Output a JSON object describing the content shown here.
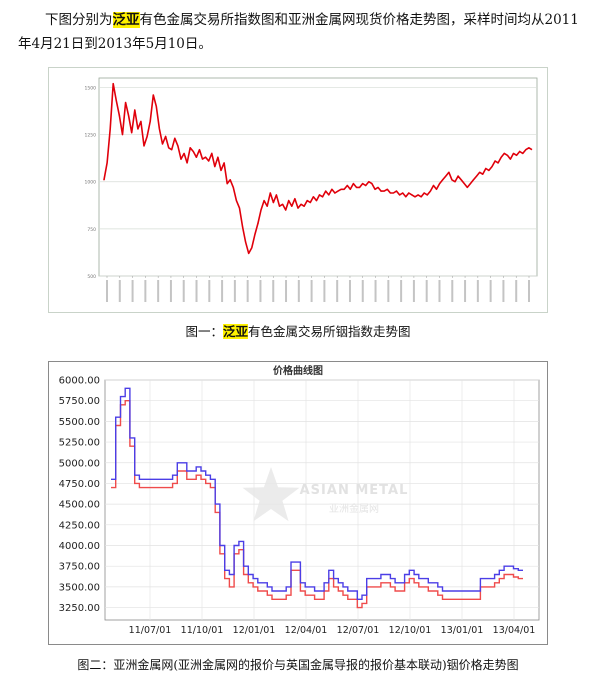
{
  "intro": {
    "before": "下图分别为",
    "highlight": "泛亚",
    "after": "有色金属交易所指数图和亚洲金属网现货价格走势图，采样时间均从2011年4月21日到2013年5月10日。"
  },
  "figure1": {
    "caption_prefix": "图一：",
    "caption_highlight": "泛亚",
    "caption_suffix": "有色金属交易所铟指数走势图"
  },
  "figure2": {
    "caption": "图二：亚洲金属网(亚洲金属网的报价与英国金属导报的报价基本联动)铟价格走势图"
  },
  "chart_data": [
    {
      "type": "line",
      "title": "",
      "ylim": [
        500,
        1550
      ],
      "y_ticks": [
        500,
        750,
        1000,
        1250,
        1500
      ],
      "colors": [
        "#e0000b"
      ],
      "grid": true,
      "x_range": [
        "2011-04-21",
        "2013-05-10"
      ],
      "series": [
        {
          "values": [
            1010,
            1100,
            1280,
            1520,
            1430,
            1350,
            1250,
            1420,
            1350,
            1260,
            1380,
            1280,
            1320,
            1190,
            1240,
            1320,
            1460,
            1400,
            1280,
            1200,
            1240,
            1180,
            1170,
            1230,
            1190,
            1120,
            1150,
            1100,
            1180,
            1160,
            1130,
            1170,
            1120,
            1130,
            1110,
            1150,
            1080,
            1130,
            1060,
            1100,
            990,
            1010,
            970,
            900,
            860,
            760,
            680,
            620,
            650,
            720,
            780,
            850,
            900,
            870,
            940,
            890,
            930,
            870,
            880,
            850,
            900,
            870,
            910,
            860,
            880,
            870,
            900,
            890,
            920,
            900,
            930,
            920,
            950,
            930,
            960,
            940,
            950,
            960,
            960,
            980,
            960,
            990,
            970,
            970,
            990,
            980,
            1000,
            990,
            960,
            970,
            950,
            950,
            960,
            940,
            940,
            950,
            930,
            940,
            920,
            940,
            930,
            920,
            930,
            920,
            940,
            930,
            950,
            980,
            960,
            990,
            1010,
            1030,
            1050,
            1010,
            1000,
            1030,
            1010,
            990,
            970,
            990,
            1010,
            1030,
            1050,
            1040,
            1070,
            1060,
            1080,
            1110,
            1100,
            1130,
            1150,
            1140,
            1120,
            1150,
            1140,
            1160,
            1150,
            1170,
            1180,
            1170
          ]
        }
      ]
    },
    {
      "type": "line",
      "title": "价格曲线图",
      "ylim": [
        3100,
        6000
      ],
      "y_ticks": [
        "6000.00",
        "5750.00",
        "5500.00",
        "5250.00",
        "5000.00",
        "4750.00",
        "4500.00",
        "4250.00",
        "4000.00",
        "3750.00",
        "3500.00",
        "3250.00"
      ],
      "x_ticks": [
        "11/07/01",
        "11/10/01",
        "12/01/01",
        "12/04/01",
        "12/07/01",
        "12/10/01",
        "13/01/01",
        "13/04/01"
      ],
      "watermark": "ASIAN METAL",
      "watermark_cn": "亚洲金属网",
      "grid": true,
      "series": [
        {
          "color": "#4b3ee6",
          "values": [
            4800,
            5550,
            5800,
            5900,
            5300,
            4850,
            4800,
            4800,
            4800,
            4800,
            4800,
            4800,
            4800,
            4850,
            5000,
            5000,
            4900,
            4900,
            4950,
            4900,
            4850,
            4800,
            4500,
            4000,
            3700,
            3650,
            4000,
            4050,
            3750,
            3650,
            3600,
            3550,
            3550,
            3500,
            3450,
            3450,
            3450,
            3500,
            3800,
            3800,
            3550,
            3500,
            3500,
            3450,
            3450,
            3550,
            3700,
            3600,
            3550,
            3500,
            3450,
            3450,
            3350,
            3400,
            3600,
            3600,
            3600,
            3650,
            3650,
            3600,
            3550,
            3550,
            3650,
            3700,
            3650,
            3600,
            3600,
            3550,
            3550,
            3500,
            3450,
            3450,
            3450,
            3450,
            3450,
            3450,
            3450,
            3450,
            3600,
            3600,
            3600,
            3650,
            3700,
            3750,
            3750,
            3720,
            3700,
            3700
          ]
        },
        {
          "color": "#ef4b4b",
          "values": [
            4700,
            5450,
            5700,
            5750,
            5200,
            4750,
            4700,
            4700,
            4700,
            4700,
            4700,
            4700,
            4700,
            4750,
            4900,
            4900,
            4800,
            4800,
            4850,
            4800,
            4750,
            4700,
            4400,
            3900,
            3600,
            3500,
            3900,
            3950,
            3650,
            3550,
            3500,
            3450,
            3450,
            3400,
            3350,
            3350,
            3350,
            3400,
            3700,
            3700,
            3450,
            3400,
            3400,
            3350,
            3350,
            3450,
            3600,
            3500,
            3450,
            3400,
            3350,
            3350,
            3250,
            3300,
            3500,
            3500,
            3500,
            3550,
            3550,
            3500,
            3450,
            3450,
            3550,
            3600,
            3550,
            3500,
            3500,
            3450,
            3450,
            3400,
            3350,
            3350,
            3350,
            3350,
            3350,
            3350,
            3350,
            3350,
            3500,
            3500,
            3500,
            3550,
            3600,
            3650,
            3650,
            3620,
            3600,
            3600
          ]
        }
      ]
    }
  ]
}
